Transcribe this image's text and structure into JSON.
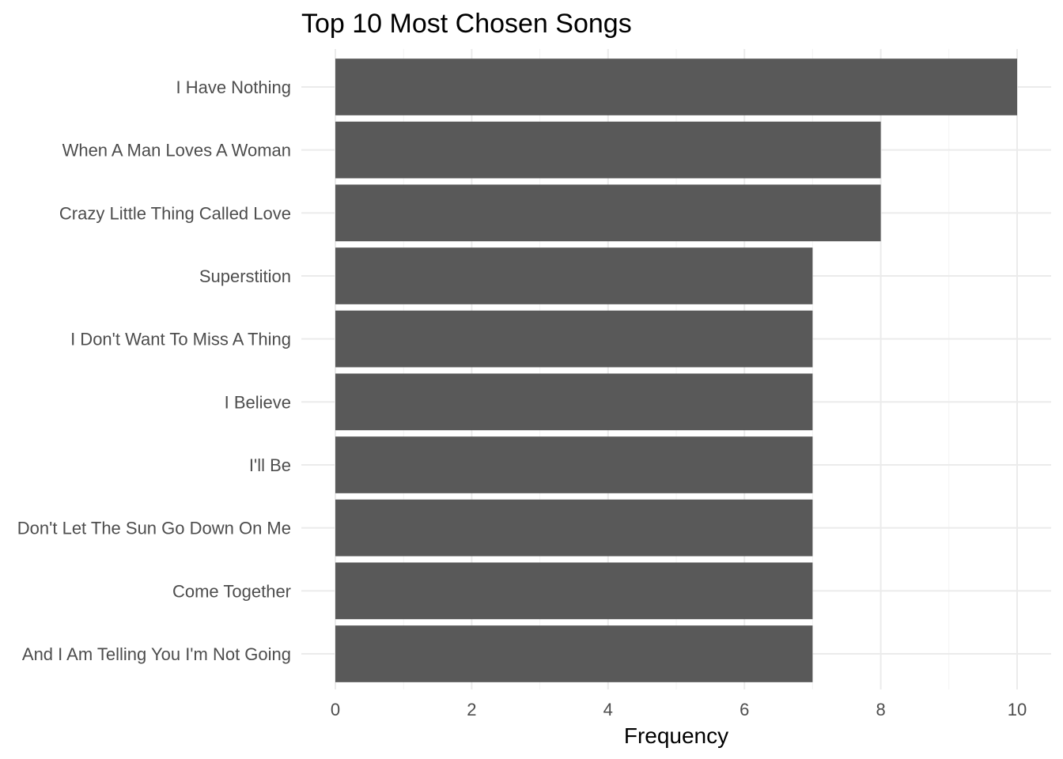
{
  "chart_data": {
    "type": "bar",
    "orientation": "horizontal",
    "title": "Top 10 Most Chosen Songs",
    "xlabel": "Frequency",
    "ylabel": "",
    "categories": [
      "I Have Nothing",
      "When A Man Loves A Woman",
      "Crazy Little Thing Called Love",
      "Superstition",
      "I Don't Want To Miss A Thing",
      "I Believe",
      "I'll Be",
      "Don't Let The Sun Go Down On Me",
      "Come Together",
      "And I Am Telling You I'm Not Going"
    ],
    "values": [
      10,
      8,
      8,
      7,
      7,
      7,
      7,
      7,
      7,
      7
    ],
    "xlim": [
      0,
      10
    ],
    "xticks": [
      "0",
      "2",
      "4",
      "6",
      "8",
      "10"
    ],
    "bar_color": "#595959",
    "grid": true,
    "legend": "none"
  }
}
